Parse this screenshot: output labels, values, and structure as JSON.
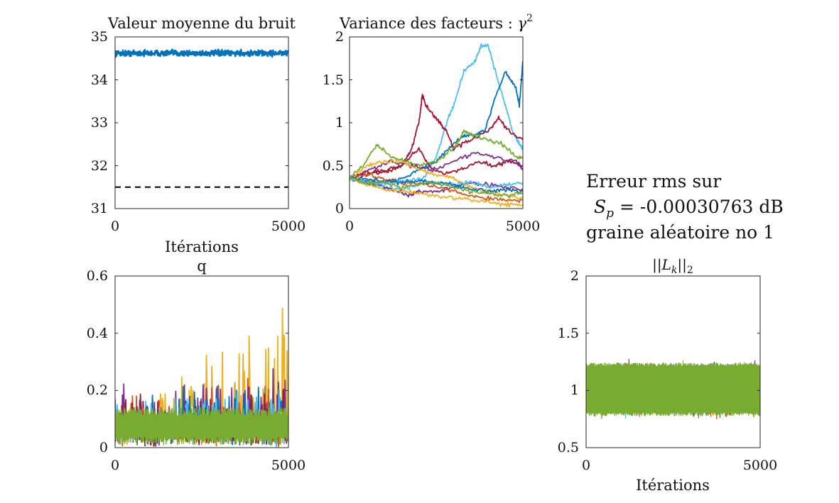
{
  "side_text": {
    "line1": "Erreur rms sur",
    "line2": "S_p = -0.00030763 dB",
    "line2_symbol": "S",
    "line2_sub": "p",
    "line2_rest": " = -0.00030763 dB",
    "line3": "graine aléatoire no 1"
  },
  "palette": [
    "#0072BD",
    "#D95319",
    "#EDB120",
    "#7E2F8E",
    "#77AC30",
    "#4DBEEE",
    "#A2142F"
  ],
  "chart_data": [
    {
      "id": "noise",
      "type": "line",
      "title": "Valeur moyenne du bruit",
      "xlabel": "Itérations",
      "ylabel": "",
      "xlim": [
        0,
        5000
      ],
      "ylim": [
        31,
        35
      ],
      "xticks": [
        0,
        5000
      ],
      "yticks": [
        31,
        32,
        33,
        34,
        35
      ],
      "xtick_labels": [
        "0",
        "5000"
      ],
      "ytick_labels": [
        "31",
        "32",
        "33",
        "34",
        "35"
      ],
      "series": [
        {
          "type": "noisy",
          "mean": 34.62,
          "spread": 0.1,
          "samples": 600,
          "color": "#0072BD",
          "width": 2.5
        },
        {
          "type": "hline",
          "value": 31.5,
          "dashed": true,
          "color": "#000000"
        }
      ]
    },
    {
      "id": "gamma",
      "type": "line",
      "title": "Variance des facteurs : γ²",
      "title_text": "Variance des facteurs : ",
      "title_symbol": "γ",
      "title_sup": "2",
      "xlabel": "",
      "ylabel": "",
      "xlim": [
        0,
        5000
      ],
      "ylim": [
        0,
        2
      ],
      "xticks": [
        0,
        5000
      ],
      "yticks": [
        0,
        0.5,
        1,
        1.5,
        2
      ],
      "xtick_labels": [
        "0",
        "5000"
      ],
      "ytick_labels": [
        "0",
        "0.5",
        "1",
        "1.5",
        "2"
      ],
      "series": [
        {
          "type": "path",
          "color": "#4DBEEE",
          "points": [
            [
              0,
              0.35
            ],
            [
              500,
              0.3
            ],
            [
              1000,
              0.25
            ],
            [
              1500,
              0.22
            ],
            [
              2000,
              0.28
            ],
            [
              2500,
              0.6
            ],
            [
              2800,
              1.0
            ],
            [
              3000,
              1.2
            ],
            [
              3300,
              1.6
            ],
            [
              3600,
              1.7
            ],
            [
              3800,
              1.9
            ],
            [
              4000,
              1.9
            ],
            [
              4200,
              1.6
            ],
            [
              4500,
              1.2
            ],
            [
              4700,
              0.9
            ],
            [
              4900,
              0.75
            ],
            [
              5000,
              0.7
            ]
          ]
        },
        {
          "type": "path",
          "color": "#0072BD",
          "points": [
            [
              0,
              0.35
            ],
            [
              500,
              0.32
            ],
            [
              1000,
              0.3
            ],
            [
              1500,
              0.35
            ],
            [
              2000,
              0.45
            ],
            [
              2500,
              0.55
            ],
            [
              3000,
              0.75
            ],
            [
              3300,
              0.85
            ],
            [
              3600,
              0.85
            ],
            [
              3900,
              0.9
            ],
            [
              4200,
              1.3
            ],
            [
              4500,
              1.6
            ],
            [
              4800,
              1.4
            ],
            [
              4900,
              1.2
            ],
            [
              5000,
              1.72
            ]
          ]
        },
        {
          "type": "path",
          "color": "#A2142F",
          "points": [
            [
              0,
              0.35
            ],
            [
              500,
              0.4
            ],
            [
              1000,
              0.42
            ],
            [
              1500,
              0.5
            ],
            [
              1800,
              0.7
            ],
            [
              2000,
              1.0
            ],
            [
              2100,
              1.32
            ],
            [
              2200,
              1.2
            ],
            [
              2400,
              1.1
            ],
            [
              2600,
              1.0
            ],
            [
              2800,
              0.9
            ],
            [
              3000,
              0.7
            ],
            [
              3500,
              0.8
            ],
            [
              4000,
              0.9
            ],
            [
              4300,
              1.05
            ],
            [
              4600,
              0.9
            ],
            [
              5000,
              0.8
            ]
          ]
        },
        {
          "type": "path",
          "color": "#A2142F",
          "points": [
            [
              0,
              0.35
            ],
            [
              500,
              0.42
            ],
            [
              1000,
              0.45
            ],
            [
              1500,
              0.5
            ],
            [
              2000,
              0.7
            ],
            [
              2300,
              0.5
            ],
            [
              2700,
              0.4
            ],
            [
              3200,
              0.45
            ],
            [
              3700,
              0.55
            ],
            [
              4200,
              0.5
            ],
            [
              4600,
              0.55
            ],
            [
              5000,
              0.5
            ]
          ]
        },
        {
          "type": "path",
          "color": "#77AC30",
          "points": [
            [
              0,
              0.35
            ],
            [
              400,
              0.5
            ],
            [
              800,
              0.75
            ],
            [
              1200,
              0.6
            ],
            [
              1600,
              0.55
            ],
            [
              2000,
              0.5
            ],
            [
              2500,
              0.55
            ],
            [
              3000,
              0.7
            ],
            [
              3300,
              0.9
            ],
            [
              3600,
              0.85
            ],
            [
              4000,
              0.8
            ],
            [
              4400,
              0.75
            ],
            [
              4800,
              0.6
            ],
            [
              5000,
              0.6
            ]
          ]
        },
        {
          "type": "path",
          "color": "#7E2F8E",
          "points": [
            [
              0,
              0.35
            ],
            [
              500,
              0.3
            ],
            [
              1000,
              0.25
            ],
            [
              1400,
              0.2
            ],
            [
              1700,
              0.15
            ],
            [
              2000,
              0.2
            ],
            [
              2500,
              0.2
            ],
            [
              3000,
              0.25
            ],
            [
              3500,
              0.3
            ],
            [
              4000,
              0.28
            ],
            [
              4500,
              0.25
            ],
            [
              5000,
              0.22
            ]
          ]
        },
        {
          "type": "path",
          "color": "#7E2F8E",
          "points": [
            [
              0,
              0.35
            ],
            [
              600,
              0.45
            ],
            [
              1200,
              0.55
            ],
            [
              1800,
              0.5
            ],
            [
              2400,
              0.45
            ],
            [
              3000,
              0.55
            ],
            [
              3600,
              0.65
            ],
            [
              4200,
              0.6
            ],
            [
              4800,
              0.55
            ],
            [
              5000,
              0.45
            ]
          ]
        },
        {
          "type": "path",
          "color": "#EDB120",
          "points": [
            [
              0,
              0.35
            ],
            [
              500,
              0.5
            ],
            [
              1000,
              0.55
            ],
            [
              1500,
              0.55
            ],
            [
              2000,
              0.45
            ],
            [
              2500,
              0.4
            ],
            [
              3000,
              0.35
            ],
            [
              3500,
              0.25
            ],
            [
              4000,
              0.2
            ],
            [
              4500,
              0.15
            ],
            [
              5000,
              0.12
            ]
          ]
        },
        {
          "type": "path",
          "color": "#D95319",
          "points": [
            [
              0,
              0.35
            ],
            [
              500,
              0.4
            ],
            [
              1000,
              0.35
            ],
            [
              1500,
              0.3
            ],
            [
              2000,
              0.3
            ],
            [
              2500,
              0.25
            ],
            [
              3000,
              0.2
            ],
            [
              3500,
              0.15
            ],
            [
              4000,
              0.12
            ],
            [
              4500,
              0.1
            ],
            [
              5000,
              0.1
            ]
          ]
        },
        {
          "type": "path",
          "color": "#EDB120",
          "points": [
            [
              0,
              0.35
            ],
            [
              500,
              0.28
            ],
            [
              1000,
              0.22
            ],
            [
              1500,
              0.2
            ],
            [
              2000,
              0.18
            ],
            [
              2500,
              0.15
            ],
            [
              3000,
              0.12
            ],
            [
              3500,
              0.1
            ],
            [
              4000,
              0.08
            ],
            [
              4500,
              0.05
            ],
            [
              5000,
              0.05
            ]
          ]
        },
        {
          "type": "path",
          "color": "#4DBEEE",
          "points": [
            [
              0,
              0.35
            ],
            [
              500,
              0.3
            ],
            [
              1000,
              0.28
            ],
            [
              1500,
              0.32
            ],
            [
              2000,
              0.35
            ],
            [
              2500,
              0.3
            ],
            [
              3000,
              0.28
            ],
            [
              3500,
              0.3
            ],
            [
              4000,
              0.25
            ],
            [
              4500,
              0.28
            ],
            [
              5000,
              0.3
            ]
          ]
        },
        {
          "type": "path",
          "color": "#0072BD",
          "points": [
            [
              0,
              0.35
            ],
            [
              500,
              0.35
            ],
            [
              1000,
              0.32
            ],
            [
              1500,
              0.3
            ],
            [
              2000,
              0.32
            ],
            [
              2500,
              0.3
            ],
            [
              3000,
              0.28
            ],
            [
              3500,
              0.22
            ],
            [
              4000,
              0.2
            ],
            [
              4500,
              0.22
            ],
            [
              5000,
              0.2
            ]
          ]
        },
        {
          "type": "path",
          "color": "#77AC30",
          "points": [
            [
              0,
              0.35
            ],
            [
              500,
              0.3
            ],
            [
              1000,
              0.3
            ],
            [
              1500,
              0.25
            ],
            [
              2000,
              0.28
            ],
            [
              2500,
              0.3
            ],
            [
              3000,
              0.25
            ],
            [
              3500,
              0.2
            ],
            [
              4000,
              0.18
            ],
            [
              4500,
              0.15
            ],
            [
              5000,
              0.18
            ]
          ]
        }
      ]
    },
    {
      "id": "q",
      "type": "line",
      "title": "q",
      "xlabel": "",
      "ylabel": "",
      "xlim": [
        0,
        5000
      ],
      "ylim": [
        0,
        0.6
      ],
      "xticks": [
        0,
        5000
      ],
      "yticks": [
        0,
        0.2,
        0.4,
        0.6
      ],
      "xtick_labels": [
        "0",
        "5000"
      ],
      "ytick_labels": [
        "0",
        "0.2",
        "0.4",
        "0.6"
      ],
      "series": [
        {
          "type": "spiky",
          "color": "#EDB120",
          "base": 0.08,
          "spread": 0.1,
          "growth": 0.2,
          "samples": 260
        },
        {
          "type": "spiky",
          "color": "#D95319",
          "base": 0.08,
          "spread": 0.09,
          "growth": 0.06,
          "samples": 260
        },
        {
          "type": "spiky",
          "color": "#7E2F8E",
          "base": 0.08,
          "spread": 0.1,
          "growth": 0.08,
          "samples": 260
        },
        {
          "type": "spiky",
          "color": "#0072BD",
          "base": 0.08,
          "spread": 0.09,
          "growth": 0.05,
          "samples": 260
        },
        {
          "type": "spiky",
          "color": "#4DBEEE",
          "base": 0.07,
          "spread": 0.08,
          "growth": 0.03,
          "samples": 260
        },
        {
          "type": "spiky",
          "color": "#A2142F",
          "base": 0.07,
          "spread": 0.08,
          "growth": 0.02,
          "samples": 260
        },
        {
          "type": "band",
          "color": "#77AC30",
          "low": 0.01,
          "high": 0.14,
          "samples": 400
        }
      ]
    },
    {
      "id": "lk",
      "type": "line",
      "title": "||L_k||_2",
      "title_pre": "||",
      "title_symbol": "L",
      "title_sub": "k",
      "title_post": "||",
      "title_post_sub": "2",
      "xlabel": "Itérations",
      "ylabel": "",
      "xlim": [
        0,
        5000
      ],
      "ylim": [
        0.5,
        2
      ],
      "xticks": [
        0,
        5000
      ],
      "yticks": [
        0.5,
        1,
        1.5,
        2
      ],
      "xtick_labels": [
        "0",
        "5000"
      ],
      "ytick_labels": [
        "0.5",
        "1",
        "1.5",
        "2"
      ],
      "series": [
        {
          "type": "noisy",
          "mean": 1.0,
          "spread": 0.3,
          "samples": 300,
          "color": "#0072BD",
          "width": 1.2
        },
        {
          "type": "noisy",
          "mean": 1.0,
          "spread": 0.3,
          "samples": 300,
          "color": "#EDB120",
          "width": 1.2
        },
        {
          "type": "noisy",
          "mean": 1.0,
          "spread": 0.3,
          "samples": 300,
          "color": "#D95319",
          "width": 1.2
        },
        {
          "type": "noisy",
          "mean": 1.0,
          "spread": 0.3,
          "samples": 300,
          "color": "#7E2F8E",
          "width": 1.2
        },
        {
          "type": "noisy",
          "mean": 1.0,
          "spread": 0.27,
          "samples": 300,
          "color": "#4DBEEE",
          "width": 1.2
        },
        {
          "type": "band",
          "color": "#77AC30",
          "low": 0.78,
          "high": 1.24,
          "samples": 450
        }
      ]
    }
  ]
}
